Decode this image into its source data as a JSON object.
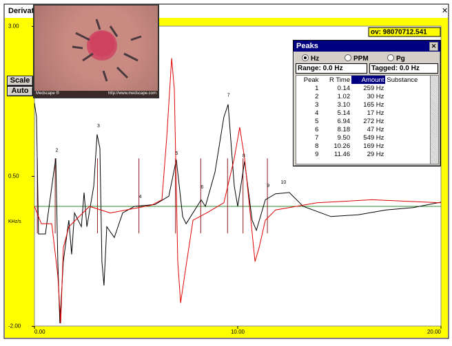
{
  "window": {
    "title": "Derivat",
    "ov_label": "ov: 98070712.541"
  },
  "buttons": [
    "Scale",
    "Auto"
  ],
  "overlay": {
    "credit": "Medscape ®",
    "url": "http://www.medscape.com"
  },
  "plot": {
    "xlim": [
      0,
      20
    ],
    "xticks": [
      {
        "value": 0,
        "label": "0.00"
      },
      {
        "value": 10,
        "label": "10.00"
      },
      {
        "value": 20,
        "label": "20.00"
      }
    ],
    "ylim": [
      -2,
      3
    ],
    "yticks": [
      {
        "value": 3,
        "label": "3.00"
      },
      {
        "value": 0.5,
        "label": "0.50"
      },
      {
        "value": -2,
        "label": "-2.00"
      }
    ],
    "y_unit": "KHz/s",
    "series": [
      {
        "color": "#000000",
        "x": [
          0.0,
          0.1,
          0.2,
          0.54,
          0.95,
          1.05,
          1.15,
          1.25,
          1.42,
          1.69,
          1.83,
          1.97,
          2.31,
          2.44,
          2.58,
          2.92,
          3.08,
          3.22,
          3.32,
          3.42,
          3.56,
          3.93,
          4.34,
          4.92,
          5.93,
          6.61,
          6.98,
          7.29,
          7.46,
          8.0,
          8.2,
          8.41,
          8.88,
          9.32,
          9.53,
          9.83,
          10.0,
          10.34,
          10.71,
          10.92,
          11.36,
          11.86,
          12.54,
          13.22,
          14.58,
          15.93,
          17.29,
          18.64,
          20.0
        ],
        "values": [
          1.72,
          1.49,
          -0.46,
          -0.46,
          0.57,
          0.8,
          -0.92,
          -1.95,
          -0.92,
          -0.23,
          -0.8,
          -0.11,
          -0.34,
          0.23,
          -0.34,
          0.34,
          1.2,
          0.97,
          -0.92,
          -1.32,
          -0.34,
          -0.52,
          -0.11,
          0.0,
          0.03,
          0.17,
          0.78,
          -0.17,
          -0.29,
          0.0,
          0.11,
          0.0,
          0.57,
          1.49,
          1.7,
          0.34,
          0.0,
          0.75,
          -0.23,
          -0.4,
          0.11,
          0.21,
          0.23,
          0.0,
          -0.17,
          -0.14,
          -0.06,
          -0.02,
          0.07
        ]
      },
      {
        "color": "#e00000",
        "x": [
          0.0,
          0.34,
          0.85,
          1.15,
          1.29,
          1.42,
          1.69,
          2.71,
          3.73,
          5.76,
          6.27,
          6.51,
          6.75,
          6.88,
          7.05,
          7.19,
          7.39,
          7.8,
          8.47,
          9.32,
          9.83,
          10.1,
          10.34,
          10.58,
          10.85,
          11.05,
          11.36,
          11.86,
          13.9,
          16.61,
          20.0
        ],
        "values": [
          0.0,
          -0.29,
          -0.29,
          -1.15,
          -1.95,
          -0.69,
          -0.34,
          0.0,
          -0.11,
          0.02,
          0.11,
          1.15,
          2.47,
          1.95,
          -0.92,
          -1.61,
          -1.15,
          -0.23,
          -0.11,
          0.06,
          0.8,
          1.32,
          0.8,
          0.0,
          -0.92,
          -0.69,
          -0.23,
          -0.06,
          0.06,
          0.11,
          0.06
        ]
      }
    ],
    "peak_labels": [
      {
        "label": "2",
        "x": 1.1,
        "y": 0.93
      },
      {
        "label": "3",
        "x": 3.15,
        "y": 1.34
      },
      {
        "label": "4",
        "x": 5.2,
        "y": 0.16
      },
      {
        "label": "5",
        "x": 7.0,
        "y": 0.88
      },
      {
        "label": "6",
        "x": 8.25,
        "y": 0.32
      },
      {
        "label": "7",
        "x": 9.55,
        "y": 1.85
      },
      {
        "label": "8",
        "x": 10.3,
        "y": 0.84
      },
      {
        "label": "9",
        "x": 11.5,
        "y": 0.34
      },
      {
        "label": "10",
        "x": 12.25,
        "y": 0.4
      }
    ]
  },
  "peaks": {
    "title": "Peaks",
    "units": [
      "Hz",
      "PPM",
      "Pg"
    ],
    "selected_unit": 0,
    "range": "Range: 0.0 Hz",
    "tagged": "Tagged: 0.0 Hz",
    "columns": [
      "Peak",
      "R Time",
      "Amount",
      "Substance"
    ],
    "rows": [
      [
        "1",
        "0.14",
        "259 Hz"
      ],
      [
        "2",
        "1.02",
        "30 Hz"
      ],
      [
        "3",
        "3.10",
        "165 Hz"
      ],
      [
        "4",
        "5.14",
        "17 Hz"
      ],
      [
        "5",
        "6.94",
        "272 Hz"
      ],
      [
        "6",
        "8.18",
        "47 Hz"
      ],
      [
        "7",
        "9.50",
        "549 Hz"
      ],
      [
        "8",
        "10.26",
        "169 Hz"
      ],
      [
        "9",
        "11.46",
        "29 Hz"
      ]
    ]
  }
}
